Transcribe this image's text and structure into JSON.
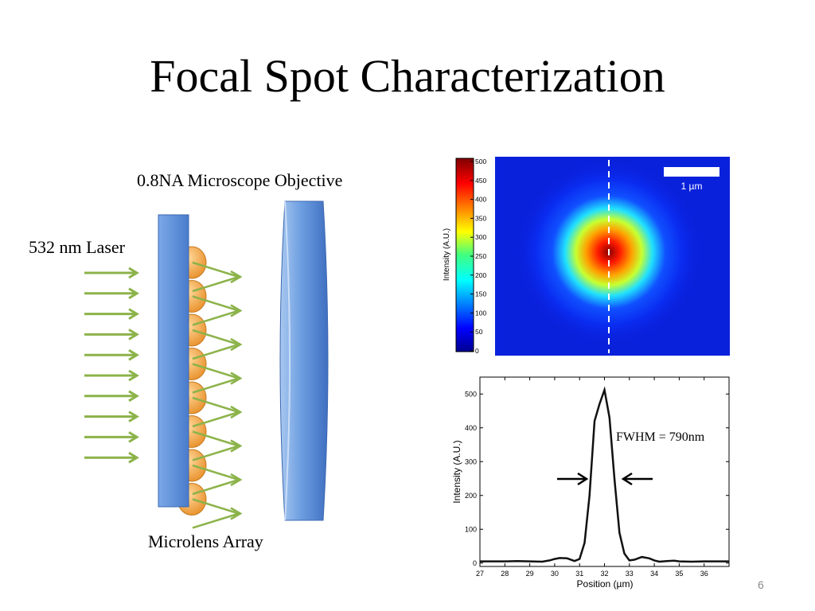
{
  "slide": {
    "title": "Focal Spot Characterization",
    "page_number": "6"
  },
  "diagram": {
    "objective_label": "0.8NA Microscope Objective",
    "laser_label": "532 nm Laser",
    "array_label": "Microlens Array",
    "incoming_arrows": 10,
    "microlens_count": 8,
    "colors": {
      "arrow": "#8cb34a",
      "substrate": "#5b8fd9",
      "lens": "#f0a040",
      "objective": "#5b8fd9"
    }
  },
  "heatmap": {
    "colorbar_label": "Intensity (A.U.)",
    "colorbar_ticks": [
      "0",
      "50",
      "100",
      "150",
      "200",
      "250",
      "300",
      "350",
      "400",
      "450",
      "500"
    ],
    "scalebar_label": "1 µm",
    "colormap": "jet",
    "range": [
      0,
      500
    ]
  },
  "chart_data": {
    "type": "line",
    "xlabel": "Position (µm)",
    "ylabel": "Intensity (A.U.)",
    "xlim": [
      27,
      37
    ],
    "ylim": [
      -10,
      550
    ],
    "xticks": [
      "27",
      "28",
      "29",
      "30",
      "31",
      "32",
      "33",
      "34",
      "35",
      "36"
    ],
    "yticks": [
      "0",
      "100",
      "200",
      "300",
      "400",
      "500"
    ],
    "annotation": "FWHM = 790nm",
    "series": [
      {
        "x": [
          27.0,
          27.5,
          28.0,
          28.5,
          29.0,
          29.5,
          29.8,
          30.0,
          30.2,
          30.5,
          30.8,
          31.0,
          31.2,
          31.4,
          31.6,
          31.8,
          32.0,
          32.2,
          32.4,
          32.6,
          32.8,
          33.0,
          33.2,
          33.5,
          33.8,
          34.0,
          34.2,
          34.5,
          34.8,
          35.0,
          35.5,
          36.0,
          36.5,
          37.0
        ],
        "y": [
          5,
          5,
          5,
          6,
          5,
          4,
          8,
          12,
          15,
          14,
          6,
          12,
          60,
          200,
          420,
          470,
          512,
          430,
          250,
          90,
          28,
          8,
          10,
          18,
          14,
          8,
          4,
          6,
          7,
          5,
          4,
          5,
          5,
          5
        ]
      }
    ]
  }
}
